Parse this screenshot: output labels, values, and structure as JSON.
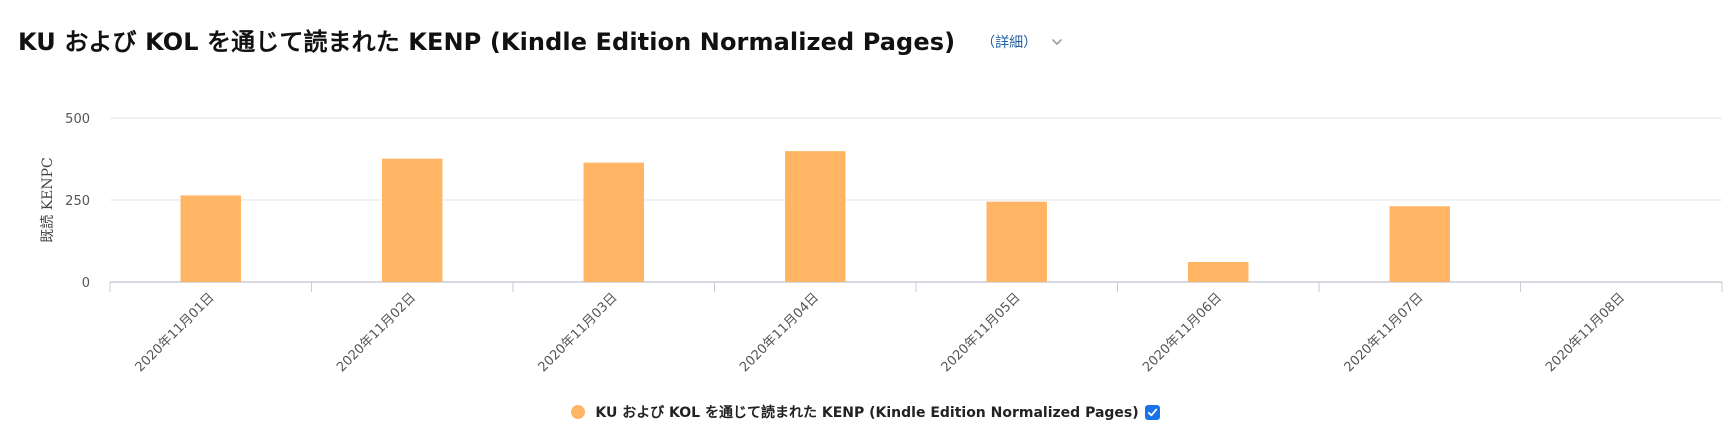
{
  "header": {
    "title": "KU および KOL を通じて読まれた KENP (Kindle Edition Normalized Pages)",
    "details_label": "（詳細）",
    "chevron_icon": "chevron-down-icon"
  },
  "colors": {
    "bar": "#FFB563",
    "grid": "#E3E6EB",
    "axis": "#C9CDD6",
    "tick_text": "#555555",
    "link": "#1F5FA5",
    "checkbox": "#1A73E8"
  },
  "legend": {
    "label": "KU および KOL を通じて読まれた KENP (Kindle Edition Normalized Pages)",
    "checked": true,
    "placement": "bottom-center"
  },
  "chart_data": {
    "type": "bar",
    "categories": [
      "2020年11月01日",
      "2020年11月02日",
      "2020年11月03日",
      "2020年11月04日",
      "2020年11月05日",
      "2020年11月06日",
      "2020年11月07日",
      "2020年11月08日"
    ],
    "series": [
      {
        "name": "KU および KOL を通じて読まれた KENP (Kindle Edition Normalized Pages)",
        "values": [
          264,
          376,
          364,
          399,
          245,
          61,
          231,
          0
        ]
      }
    ],
    "ylabel": "既読 KENPC",
    "xlabel": "",
    "ylim": [
      0,
      500
    ],
    "yticks": [
      0,
      250,
      500
    ],
    "grid": true
  }
}
